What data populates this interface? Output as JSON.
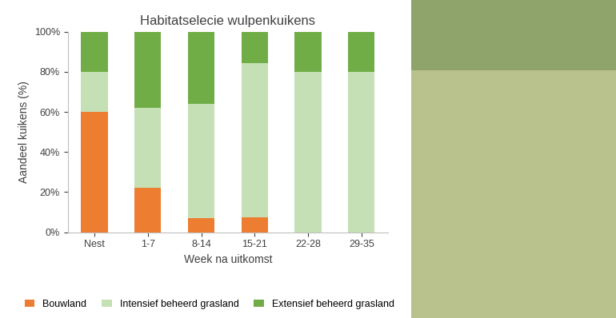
{
  "chart_data": {
    "type": "bar",
    "stacked": true,
    "title": "Habitatselecie wulpenkuikens",
    "x_label": "Week na uitkomst",
    "y_label": "Aandeel kuikens (%)",
    "categories": [
      "Nest",
      "1-7",
      "8-14",
      "15-21",
      "22-28",
      "29-35"
    ],
    "series": [
      {
        "name": "Bouwland",
        "color": "#ED7D31",
        "values": [
          60,
          22,
          7,
          7.5,
          0,
          0
        ]
      },
      {
        "name": "Intensief beheerd grasland",
        "color": "#C5E0B4",
        "values": [
          20,
          40,
          57,
          77,
          80,
          80
        ]
      },
      {
        "name": "Extensief beheerd grasland",
        "color": "#70AD47",
        "values": [
          20,
          38,
          36,
          15.5,
          20,
          20
        ]
      }
    ],
    "ylim": [
      0,
      100
    ],
    "yticks": [
      {
        "value": 0,
        "label": "0%"
      },
      {
        "value": 20,
        "label": "20%"
      },
      {
        "value": 40,
        "label": "40%"
      },
      {
        "value": 60,
        "label": "60%"
      },
      {
        "value": 80,
        "label": "80%"
      },
      {
        "value": 100,
        "label": "100%"
      }
    ],
    "grid": false,
    "legend": "lower center"
  }
}
